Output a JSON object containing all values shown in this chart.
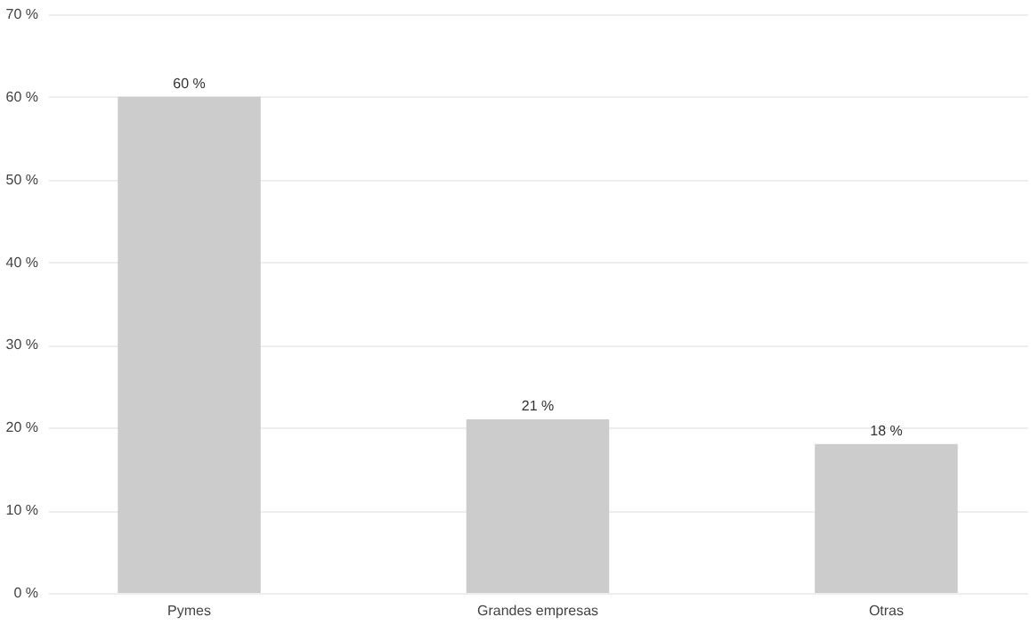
{
  "chart_data": {
    "type": "bar",
    "categories": [
      "Pymes",
      "Grandes empresas",
      "Otras"
    ],
    "values": [
      60,
      21,
      18
    ],
    "color": "#cccccc",
    "value_labels": [
      "60 %",
      "21 %",
      "18 %"
    ],
    "ylim": [
      0,
      70
    ],
    "yticks": [
      {
        "value": 0,
        "label": "0 %"
      },
      {
        "value": 10,
        "label": "10 %"
      },
      {
        "value": 20,
        "label": "20 %"
      },
      {
        "value": 30,
        "label": "30 %"
      },
      {
        "value": 40,
        "label": "40 %"
      },
      {
        "value": 50,
        "label": "50 %"
      },
      {
        "value": 60,
        "label": "60 %"
      },
      {
        "value": 70,
        "label": "70 %"
      }
    ],
    "grid": "y"
  }
}
